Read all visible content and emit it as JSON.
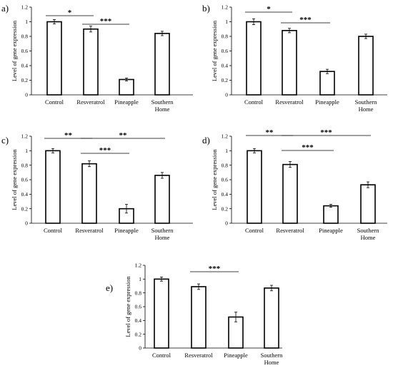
{
  "chart_data": [
    {
      "type": "bar",
      "panel": "a)",
      "categories": [
        "Control",
        "Resveratrol",
        "Pineapple",
        "Southern Home"
      ],
      "values": [
        1.0,
        0.9,
        0.21,
        0.84
      ],
      "errors": [
        0.03,
        0.04,
        0.02,
        0.03
      ],
      "ylabel": "Level of gene expression",
      "ylim": [
        0,
        1.2
      ],
      "yticks": [
        "0",
        "0.2",
        "0.4",
        "0.6",
        "0.8",
        "1",
        "1.2"
      ],
      "significance": [
        {
          "from": 0,
          "to": 1,
          "label": "*"
        },
        {
          "from": 1,
          "to": 2,
          "label": "***"
        }
      ]
    },
    {
      "type": "bar",
      "panel": "b)",
      "categories": [
        "Control",
        "Resveratrol",
        "Pineapple",
        "Southern Home"
      ],
      "values": [
        1.0,
        0.88,
        0.32,
        0.8
      ],
      "errors": [
        0.04,
        0.03,
        0.03,
        0.03
      ],
      "ylabel": "Level of gene expression",
      "ylim": [
        0,
        1.2
      ],
      "yticks": [
        "0",
        "0.2",
        "0.4",
        "0.6",
        "0.8",
        "1",
        "1.2"
      ],
      "significance": [
        {
          "from": 0,
          "to": 1,
          "label": "*"
        },
        {
          "from": 1,
          "to": 2,
          "label": "***"
        }
      ]
    },
    {
      "type": "bar",
      "panel": "c)",
      "categories": [
        "Control",
        "Resveratrol",
        "Pineapple",
        "Southern Home"
      ],
      "values": [
        1.0,
        0.82,
        0.2,
        0.66
      ],
      "errors": [
        0.03,
        0.04,
        0.06,
        0.04
      ],
      "ylabel": "Level of gene expression",
      "ylim": [
        0,
        1.2
      ],
      "yticks": [
        "0",
        "0.2",
        "0.4",
        "0.6",
        "0.8",
        "1",
        "1.2"
      ],
      "significance": [
        {
          "from": 0,
          "to": 1,
          "label": "**"
        },
        {
          "from": 1,
          "to": 3,
          "label": "**"
        },
        {
          "from": 1,
          "to": 2,
          "label": "***"
        }
      ]
    },
    {
      "type": "bar",
      "panel": "d)",
      "categories": [
        "Control",
        "Resveratrol",
        "Pineapple",
        "Southern Home"
      ],
      "values": [
        1.0,
        0.81,
        0.24,
        0.53
      ],
      "errors": [
        0.03,
        0.04,
        0.02,
        0.04
      ],
      "ylabel": "Level of gene expression",
      "ylim": [
        0,
        1.2
      ],
      "yticks": [
        "0",
        "0.2",
        "0.4",
        "0.6",
        "0.8",
        "1",
        "1.2"
      ],
      "significance": [
        {
          "from": 0,
          "to": 1,
          "label": "**"
        },
        {
          "from": 1,
          "to": 3,
          "label": "***"
        },
        {
          "from": 1,
          "to": 2,
          "label": "***"
        }
      ]
    },
    {
      "type": "bar",
      "panel": "e)",
      "categories": [
        "Control",
        "Resveratrol",
        "Pineapple",
        "Southern Home"
      ],
      "values": [
        1.0,
        0.89,
        0.45,
        0.87
      ],
      "errors": [
        0.03,
        0.04,
        0.07,
        0.04
      ],
      "ylabel": "Level of gene expression",
      "ylim": [
        0,
        1.2
      ],
      "yticks": [
        "0",
        "0.2",
        "0.4",
        "0.6",
        "0.8",
        "1",
        "1.2"
      ],
      "significance": [
        {
          "from": 1,
          "to": 2,
          "label": "***"
        }
      ]
    }
  ]
}
